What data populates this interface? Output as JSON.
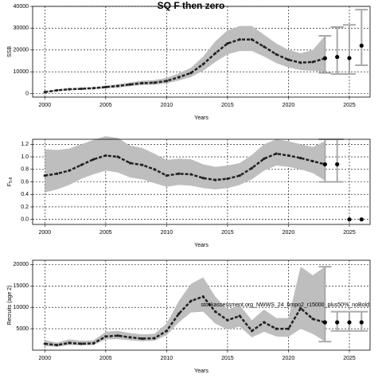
{
  "chart_data": [
    {
      "type": "line",
      "title": "SQ F then zero",
      "ylabel": "SSB",
      "xlabel": "Years",
      "x": [
        2000,
        2001,
        2002,
        2003,
        2004,
        2005,
        2006,
        2007,
        2008,
        2009,
        2010,
        2011,
        2012,
        2013,
        2014,
        2015,
        2016,
        2017,
        2018,
        2019,
        2020,
        2021,
        2022,
        2023
      ],
      "values": [
        700,
        1500,
        2000,
        2200,
        2500,
        3000,
        3500,
        4200,
        4800,
        5000,
        5800,
        7500,
        9500,
        13500,
        18500,
        23000,
        24800,
        24800,
        21500,
        18000,
        15500,
        14200,
        14500,
        16200
      ],
      "lower": [
        500,
        1200,
        1600,
        1800,
        2000,
        2400,
        2800,
        3400,
        3900,
        4100,
        4700,
        6000,
        7600,
        10500,
        14500,
        18000,
        19500,
        19500,
        17000,
        14000,
        12000,
        10800,
        10500,
        10000
      ],
      "upper": [
        1000,
        1900,
        2400,
        2700,
        3000,
        3600,
        4300,
        5100,
        5900,
        6200,
        7200,
        9300,
        11800,
        17000,
        24000,
        29000,
        31000,
        31000,
        27000,
        23000,
        20000,
        18500,
        20000,
        26500
      ],
      "proj_x": [
        2023,
        2024,
        2025,
        2026
      ],
      "proj_values": [
        16200,
        16800,
        16300,
        22000
      ],
      "proj_lower": [
        9500,
        9000,
        9000,
        13000
      ],
      "proj_upper": [
        26500,
        30500,
        31500,
        38500
      ],
      "color": "#222222",
      "band_color": "#bebebe",
      "bar_color": "#aaaaaa",
      "xlim": [
        1999,
        2026.7
      ],
      "xticks": [
        2000,
        2005,
        2010,
        2015,
        2020,
        2025
      ],
      "ylim": [
        -1600,
        40000
      ],
      "yticks": [
        0,
        10000,
        20000,
        30000,
        40000
      ],
      "grid": true
    },
    {
      "type": "line",
      "ylabel": "F",
      "ylabel_sub": "5-8",
      "xlabel": "Years",
      "x": [
        2000,
        2001,
        2002,
        2003,
        2004,
        2005,
        2006,
        2007,
        2008,
        2009,
        2010,
        2011,
        2012,
        2013,
        2014,
        2015,
        2016,
        2017,
        2018,
        2019,
        2020,
        2021,
        2022,
        2023
      ],
      "values": [
        0.7,
        0.73,
        0.78,
        0.87,
        0.96,
        1.02,
        1.0,
        0.9,
        0.87,
        0.8,
        0.7,
        0.73,
        0.72,
        0.66,
        0.63,
        0.65,
        0.7,
        0.82,
        0.97,
        1.05,
        1.02,
        0.98,
        0.93,
        0.88
      ],
      "lower": [
        0.43,
        0.48,
        0.55,
        0.65,
        0.72,
        0.78,
        0.75,
        0.67,
        0.64,
        0.58,
        0.52,
        0.55,
        0.54,
        0.5,
        0.48,
        0.5,
        0.55,
        0.64,
        0.78,
        0.86,
        0.84,
        0.8,
        0.74,
        0.62
      ],
      "upper": [
        1.12,
        1.11,
        1.13,
        1.2,
        1.27,
        1.33,
        1.3,
        1.18,
        1.14,
        1.05,
        0.95,
        0.97,
        0.96,
        0.88,
        0.84,
        0.86,
        0.9,
        1.03,
        1.2,
        1.28,
        1.25,
        1.2,
        1.16,
        1.25
      ],
      "proj_x": [
        2023,
        2024,
        2025,
        2026
      ],
      "proj_values": [
        0.88,
        0.88,
        0.0,
        0.0
      ],
      "proj_lower": [
        0.6,
        0.6,
        null,
        null
      ],
      "proj_upper": [
        1.28,
        1.28,
        null,
        null
      ],
      "color": "#222222",
      "band_color": "#bebebe",
      "bar_color": "#aaaaaa",
      "xlim": [
        1999,
        2026.7
      ],
      "xticks": [
        2000,
        2005,
        2010,
        2015,
        2020,
        2025
      ],
      "ylim": [
        -0.08,
        1.28
      ],
      "yticks": [
        {
          "value": 0,
          "label": "0.0"
        },
        0.2,
        0.4,
        0.6,
        0.8,
        {
          "value": 1,
          "label": "1.0"
        },
        1.2
      ],
      "grid": true
    },
    {
      "type": "line",
      "ylabel": "Recruits (age 2)",
      "xlabel": "Years",
      "annotation": "stockassessment.org_NWWS_24_bmpo2_r15000_plus50%_noBold",
      "x": [
        2000,
        2001,
        2002,
        2003,
        2004,
        2005,
        2006,
        2007,
        2008,
        2009,
        2010,
        2011,
        2012,
        2013,
        2014,
        2015,
        2016,
        2017,
        2018,
        2019,
        2020,
        2021,
        2022,
        2023
      ],
      "values": [
        1500,
        1200,
        1700,
        1500,
        1600,
        3200,
        3400,
        3000,
        2700,
        2800,
        4500,
        8500,
        11500,
        12500,
        9000,
        7000,
        8000,
        4500,
        6500,
        5000,
        5000,
        9800,
        7300,
        6500
      ],
      "lower": [
        1000,
        800,
        1200,
        1100,
        1200,
        2500,
        2600,
        2300,
        2100,
        2200,
        3500,
        6500,
        8800,
        9000,
        6200,
        4800,
        5500,
        3000,
        4300,
        3200,
        3100,
        5000,
        3800,
        2000
      ],
      "upper": [
        2300,
        1800,
        2500,
        2200,
        2300,
        4300,
        4500,
        4000,
        3700,
        3800,
        6200,
        11500,
        15500,
        17000,
        12500,
        9500,
        10500,
        7000,
        9500,
        7500,
        7500,
        19500,
        17500,
        19500
      ],
      "proj_x": [
        2023,
        2024,
        2025,
        2026
      ],
      "proj_values": [
        6500,
        6500,
        6500,
        6500
      ],
      "proj_lower": [
        2000,
        4500,
        4500,
        4500
      ],
      "proj_upper": [
        19500,
        9000,
        9000,
        9000
      ],
      "color": "#222222",
      "band_color": "#bebebe",
      "bar_color": "#aaaaaa",
      "xlim": [
        1999,
        2026.7
      ],
      "xticks": [
        2000,
        2005,
        2010,
        2015,
        2020,
        2025
      ],
      "ylim": [
        0,
        21000
      ],
      "yticks": [
        5000,
        10000,
        15000,
        20000
      ],
      "grid": true
    }
  ]
}
